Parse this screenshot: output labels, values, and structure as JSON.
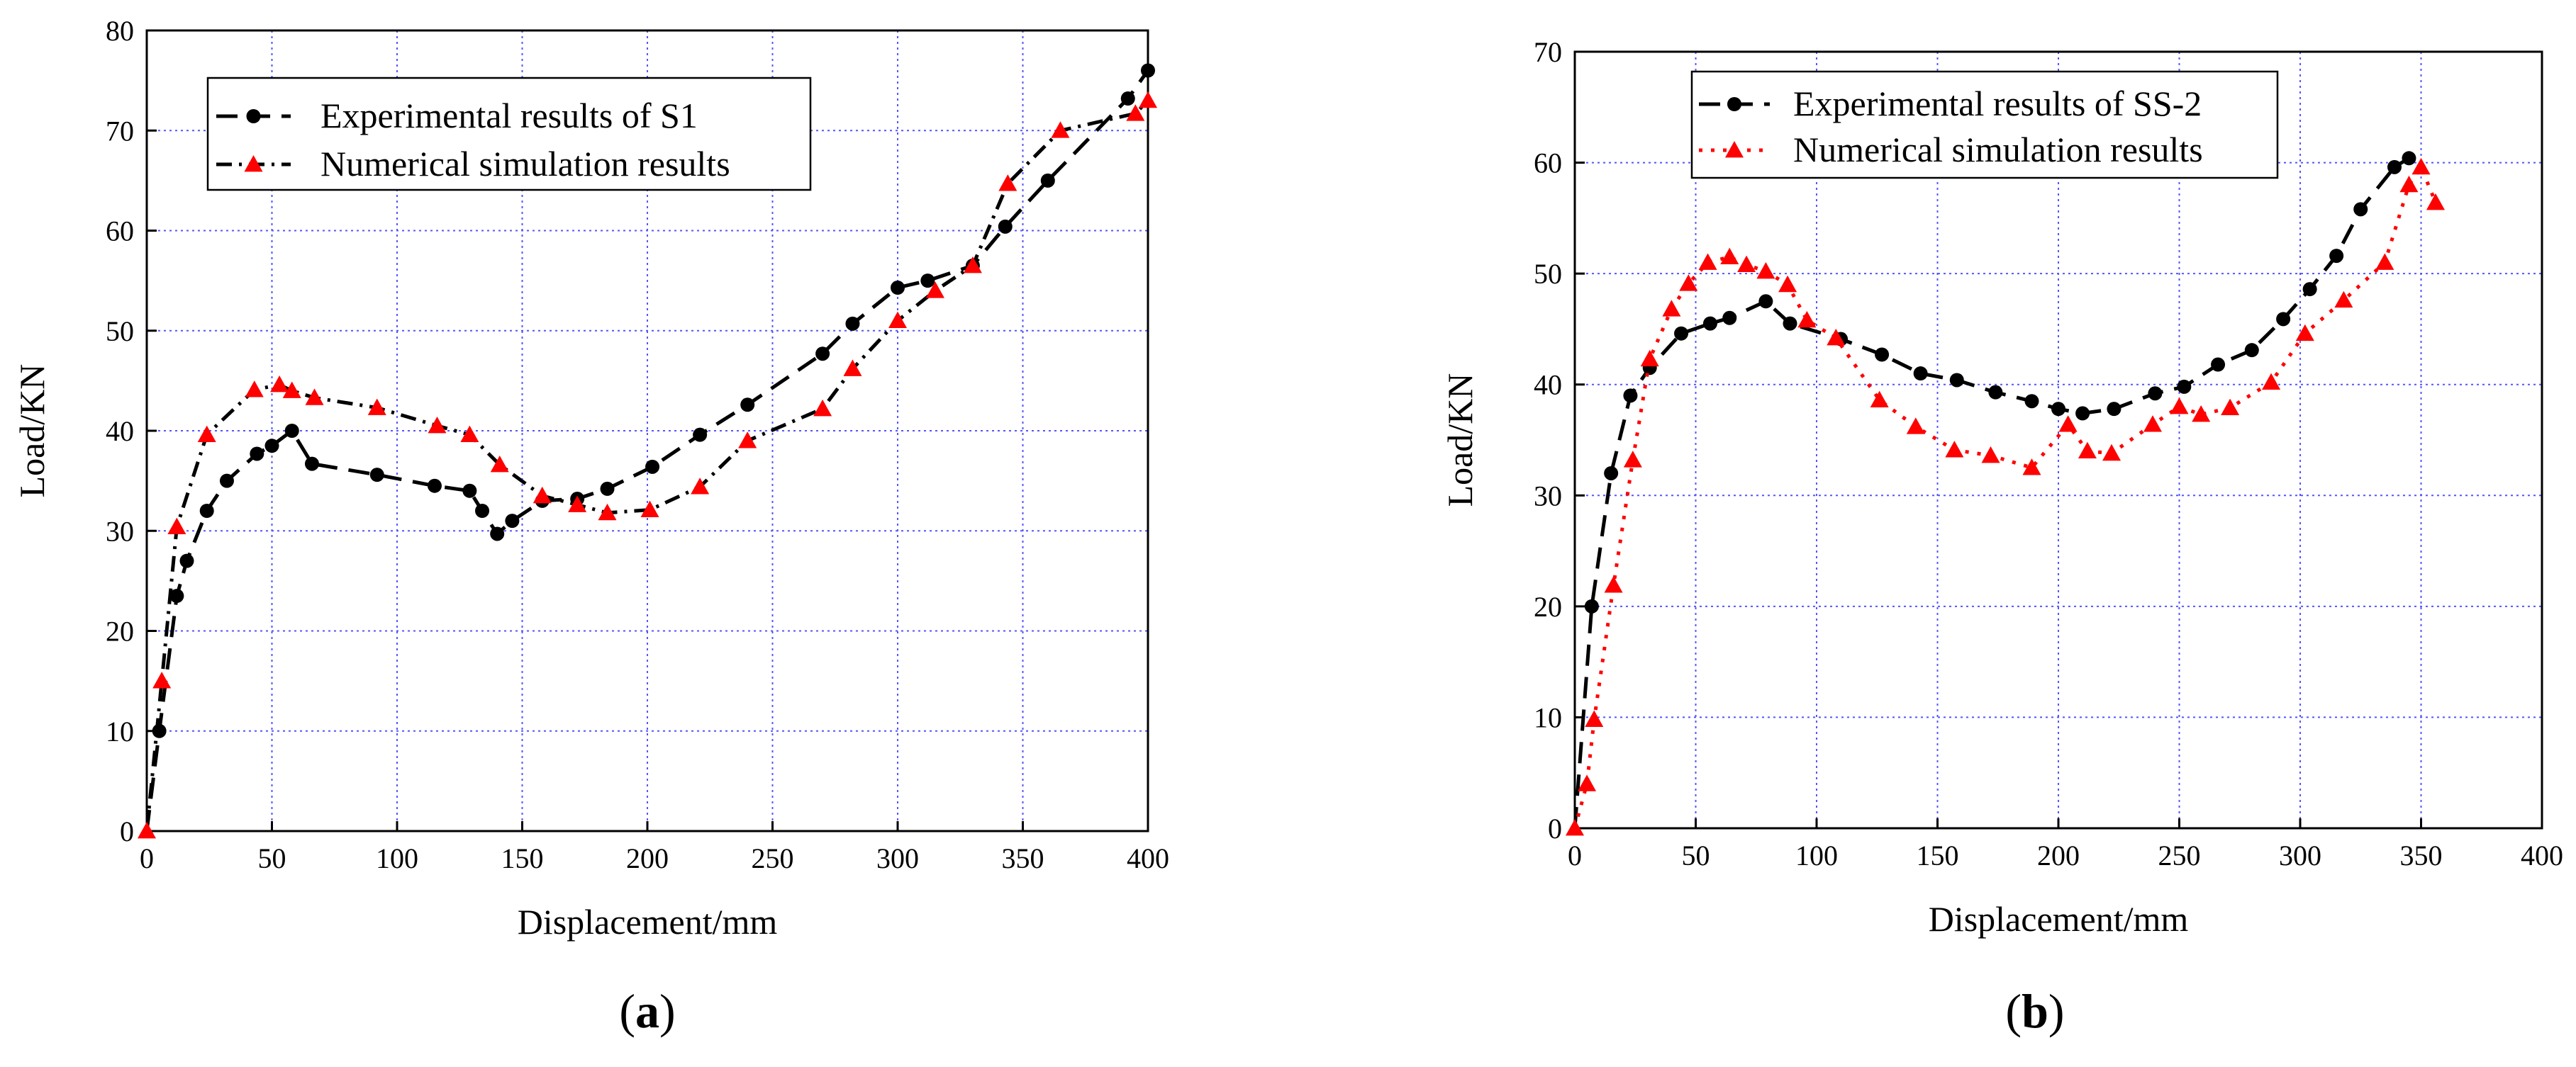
{
  "chart_data": [
    {
      "type": "line",
      "panel_label": "(a)",
      "xlabel": "Displacement/mm",
      "ylabel": "Load/KN",
      "xlim": [
        0,
        400
      ],
      "ylim": [
        0,
        80
      ],
      "xticks": [
        0,
        50,
        100,
        150,
        200,
        250,
        300,
        350,
        400
      ],
      "yticks": [
        0,
        10,
        20,
        30,
        40,
        50,
        60,
        70,
        80
      ],
      "grid": true,
      "legend_position": "top-left",
      "series": [
        {
          "name": "Experimental results of S1",
          "color": "#000000",
          "marker": "circle",
          "line_style": "dashed",
          "points": [
            [
              0,
              0
            ],
            [
              5,
              10
            ],
            [
              12,
              23.5
            ],
            [
              16,
              27
            ],
            [
              24,
              32
            ],
            [
              32,
              35
            ],
            [
              44,
              37.7
            ],
            [
              50,
              38.5
            ],
            [
              58,
              40
            ],
            [
              66,
              36.7
            ],
            [
              92,
              35.6
            ],
            [
              115,
              34.5
            ],
            [
              129,
              34
            ],
            [
              134,
              32
            ],
            [
              140,
              29.7
            ],
            [
              146,
              31
            ],
            [
              158,
              33
            ],
            [
              172,
              33.2
            ],
            [
              184,
              34.2
            ],
            [
              202,
              36.4
            ],
            [
              221,
              39.6
            ],
            [
              240,
              42.6
            ],
            [
              270,
              47.7
            ],
            [
              282,
              50.7
            ],
            [
              300,
              54.3
            ],
            [
              312,
              55
            ],
            [
              330,
              56.5
            ],
            [
              343,
              60.4
            ],
            [
              360,
              65
            ],
            [
              392,
              73.2
            ],
            [
              400,
              76
            ]
          ]
        },
        {
          "name": "Numerical simulation results",
          "color": "#ff0000",
          "line_color": "#000000",
          "marker": "triangle",
          "line_style": "dashdot",
          "points": [
            [
              0,
              0
            ],
            [
              6,
              15
            ],
            [
              12,
              30.4
            ],
            [
              24,
              39.6
            ],
            [
              43,
              44.1
            ],
            [
              53,
              44.6
            ],
            [
              58,
              44
            ],
            [
              67,
              43.3
            ],
            [
              92,
              42.3
            ],
            [
              116,
              40.5
            ],
            [
              129,
              39.6
            ],
            [
              141,
              36.6
            ],
            [
              158,
              33.5
            ],
            [
              172,
              32.6
            ],
            [
              184,
              31.8
            ],
            [
              201,
              32.1
            ],
            [
              221,
              34.4
            ],
            [
              240,
              39
            ],
            [
              270,
              42.2
            ],
            [
              282,
              46.2
            ],
            [
              300,
              51
            ],
            [
              315,
              54
            ],
            [
              330,
              56.5
            ],
            [
              344,
              64.7
            ],
            [
              365,
              70
            ],
            [
              395,
              71.7
            ],
            [
              400,
              73
            ]
          ]
        }
      ]
    },
    {
      "type": "line",
      "panel_label": "(b)",
      "xlabel": "Displacement/mm",
      "ylabel": "Load/KN",
      "xlim": [
        0,
        400
      ],
      "ylim": [
        0,
        70
      ],
      "xticks": [
        0,
        50,
        100,
        150,
        200,
        250,
        300,
        350,
        400
      ],
      "yticks": [
        0,
        10,
        20,
        30,
        40,
        50,
        60,
        70
      ],
      "grid": true,
      "legend_position": "top",
      "series": [
        {
          "name": "Experimental results of SS-2",
          "color": "#000000",
          "marker": "circle",
          "line_style": "dashed",
          "points": [
            [
              0,
              0
            ],
            [
              7,
              20
            ],
            [
              15,
              32
            ],
            [
              23,
              39
            ],
            [
              31,
              41.5
            ],
            [
              44,
              44.6
            ],
            [
              56,
              45.5
            ],
            [
              64,
              46
            ],
            [
              79,
              47.5
            ],
            [
              89,
              45.5
            ],
            [
              110,
              44.1
            ],
            [
              127,
              42.7
            ],
            [
              143,
              41
            ],
            [
              158,
              40.4
            ],
            [
              174,
              39.3
            ],
            [
              189,
              38.5
            ],
            [
              200,
              37.8
            ],
            [
              210,
              37.4
            ],
            [
              223,
              37.8
            ],
            [
              240,
              39.2
            ],
            [
              252,
              39.8
            ],
            [
              266,
              41.8
            ],
            [
              280,
              43.1
            ],
            [
              293,
              45.9
            ],
            [
              304,
              48.6
            ],
            [
              315,
              51.6
            ],
            [
              325,
              55.8
            ],
            [
              339,
              59.6
            ],
            [
              345,
              60.4
            ]
          ]
        },
        {
          "name": "Numerical simulation results",
          "color": "#ff0000",
          "marker": "triangle",
          "line_style": "dotted",
          "points": [
            [
              0,
              0
            ],
            [
              5,
              4
            ],
            [
              8,
              9.8
            ],
            [
              16,
              21.9
            ],
            [
              24,
              33.2
            ],
            [
              31,
              42.3
            ],
            [
              40,
              46.8
            ],
            [
              47,
              49.1
            ],
            [
              55,
              51
            ],
            [
              64,
              51.5
            ],
            [
              71,
              50.8
            ],
            [
              79,
              50.2
            ],
            [
              88,
              49
            ],
            [
              96,
              45.8
            ],
            [
              108,
              44.2
            ],
            [
              126,
              38.6
            ],
            [
              141,
              36.2
            ],
            [
              157,
              34.1
            ],
            [
              172,
              33.6
            ],
            [
              189,
              32.5
            ],
            [
              204,
              36.4
            ],
            [
              212,
              34
            ],
            [
              222,
              33.8
            ],
            [
              239,
              36.4
            ],
            [
              250,
              38
            ],
            [
              259,
              37.3
            ],
            [
              271,
              37.9
            ],
            [
              288,
              40.2
            ],
            [
              302,
              44.6
            ],
            [
              318,
              47.6
            ],
            [
              335,
              51
            ],
            [
              345,
              58
            ],
            [
              350,
              59.6
            ],
            [
              356,
              56.4
            ]
          ]
        }
      ]
    }
  ]
}
